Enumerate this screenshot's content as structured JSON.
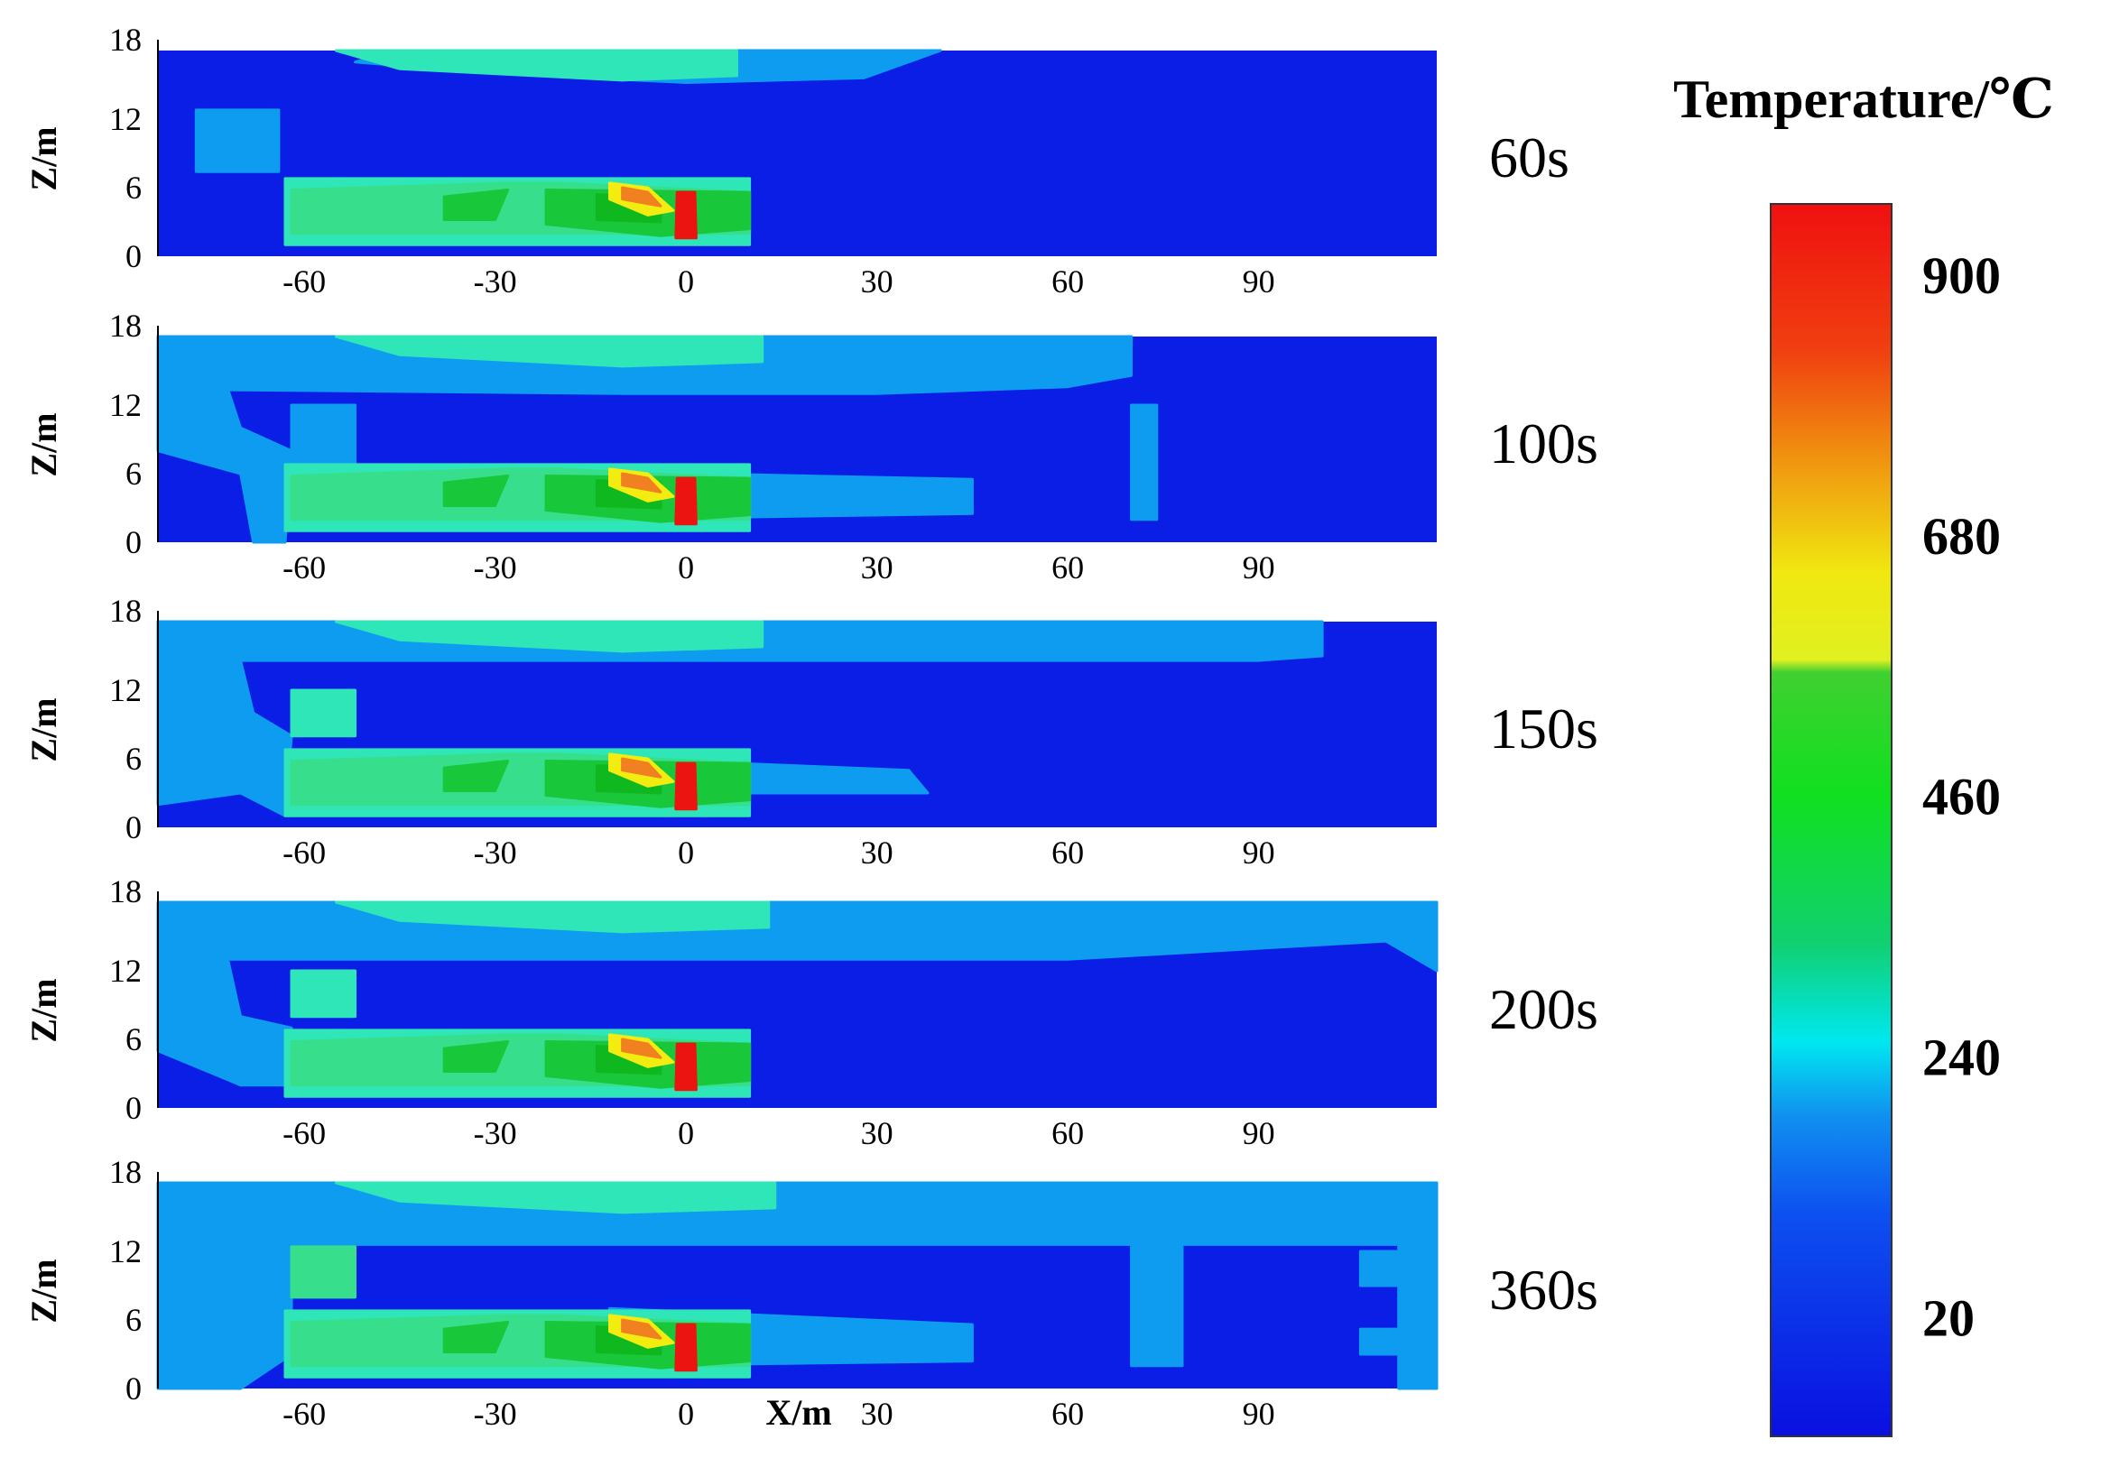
{
  "chart_data": {
    "type": "heatmap",
    "panels": [
      {
        "time_label": "60s"
      },
      {
        "time_label": "100s"
      },
      {
        "time_label": "150s"
      },
      {
        "time_label": "200s"
      },
      {
        "time_label": "360s"
      }
    ],
    "x_ticks": [
      -60,
      -30,
      0,
      30,
      60,
      90
    ],
    "y_ticks": [
      0,
      6,
      12,
      18
    ],
    "xlim": [
      -83,
      118
    ],
    "ylim": [
      0,
      18
    ],
    "xlabel": "X/m",
    "ylabel": "Z/m",
    "colorbar": {
      "title": "Temperature/℃",
      "ticks": [
        900,
        680,
        460,
        240,
        20
      ],
      "range": [
        20,
        900
      ],
      "colors": [
        "#0a1ee6",
        "#0d6cf0",
        "#00e0f0",
        "#12cf2a",
        "#f0ec10",
        "#f08010",
        "#f01010"
      ]
    }
  }
}
